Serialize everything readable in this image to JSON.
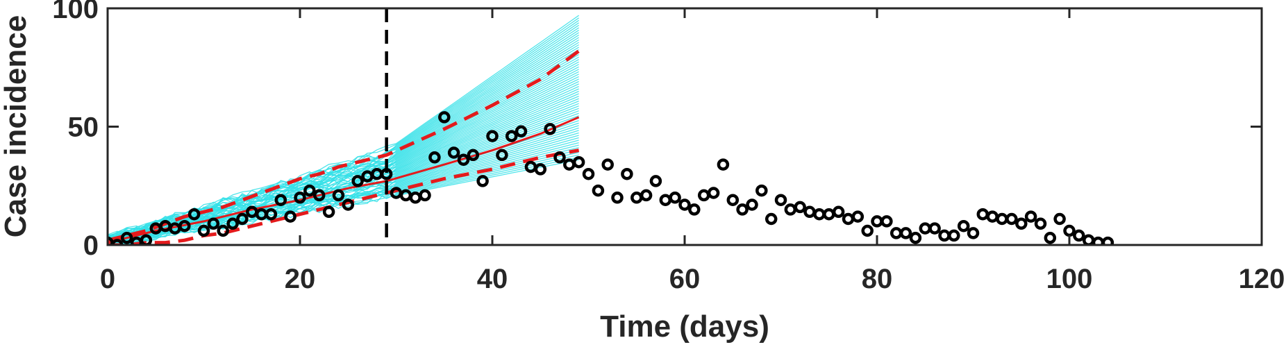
{
  "chart_data": {
    "type": "line",
    "xlabel": "Time (days)",
    "ylabel": "Case incidence",
    "xlim": [
      0,
      120
    ],
    "ylim": [
      0,
      100
    ],
    "xticks": [
      0,
      20,
      40,
      60,
      80,
      100,
      120
    ],
    "yticks": [
      0,
      50,
      100
    ],
    "xtick_labels": [
      "0",
      "20",
      "40",
      "60",
      "80",
      "100",
      "120"
    ],
    "ytick_labels": [
      "0",
      "50",
      "100"
    ],
    "grid": false,
    "fit_cutoff_day": 29,
    "forecast_end_day": 49,
    "colors": {
      "observed": "#000000",
      "ensemble": "#33e0e8",
      "fit": "#e41a1c",
      "cutoff": "#000000",
      "axis": "#262626"
    },
    "series": [
      {
        "kind": "observed",
        "x": [
          0,
          1,
          2,
          3,
          4,
          5,
          6,
          7,
          8,
          9,
          10,
          11,
          12,
          13,
          14,
          15,
          16,
          17,
          18,
          19,
          20,
          21,
          22,
          23,
          24,
          25,
          26,
          27,
          28,
          29,
          30,
          31,
          32,
          33,
          34,
          35,
          36,
          37,
          38,
          39,
          40,
          41,
          42,
          43,
          44,
          45,
          46,
          47,
          48,
          49,
          50,
          51,
          52,
          53,
          54,
          55,
          56,
          57,
          58,
          59,
          60,
          61,
          62,
          63,
          64,
          65,
          66,
          67,
          68,
          69,
          70,
          71,
          72,
          73,
          74,
          75,
          76,
          77,
          78,
          79,
          80,
          81,
          82,
          83,
          84,
          85,
          86,
          87,
          88,
          89,
          90,
          91,
          92,
          93,
          94,
          95,
          96,
          97,
          98,
          99,
          100,
          101,
          102,
          103,
          104
        ],
        "y": [
          1,
          0,
          3,
          1,
          2,
          7,
          8,
          7,
          8,
          13,
          6,
          9,
          6,
          9,
          11,
          14,
          13,
          13,
          19,
          12,
          20,
          23,
          21,
          14,
          21,
          17,
          27,
          29,
          30,
          30,
          22,
          21,
          20,
          21,
          37,
          54,
          39,
          36,
          38,
          27,
          46,
          38,
          46,
          48,
          33,
          32,
          49,
          37,
          34,
          35,
          30,
          23,
          34,
          20,
          30,
          20,
          21,
          27,
          19,
          20,
          17,
          15,
          21,
          22,
          34,
          19,
          15,
          17,
          23,
          11,
          19,
          15,
          16,
          14,
          13,
          13,
          14,
          11,
          12,
          6,
          10,
          10,
          5,
          5,
          3,
          7,
          7,
          4,
          4,
          8,
          5,
          13,
          12,
          11,
          11,
          9,
          12,
          9,
          3,
          11,
          6,
          4,
          2,
          1,
          1
        ]
      },
      {
        "kind": "fit-median",
        "x": [
          0,
          5,
          10,
          15,
          20,
          25,
          29,
          35,
          40,
          45,
          49
        ],
        "y": [
          1,
          6,
          10,
          15,
          19,
          24,
          27,
          34,
          40,
          47,
          54
        ]
      },
      {
        "kind": "fit-upper-95",
        "x": [
          0,
          2,
          4,
          6,
          8,
          10,
          12,
          14,
          16,
          18,
          20,
          22,
          24,
          26,
          28,
          29,
          35,
          40,
          45,
          49
        ],
        "y": [
          2,
          4,
          6,
          9,
          12,
          14,
          16,
          19,
          22,
          25,
          28,
          30,
          33,
          35,
          37,
          38,
          49,
          59,
          70,
          82
        ]
      },
      {
        "kind": "fit-lower-95",
        "x": [
          0,
          2,
          4,
          6,
          8,
          10,
          12,
          14,
          16,
          18,
          20,
          22,
          24,
          26,
          28,
          29,
          35,
          40,
          45,
          49
        ],
        "y": [
          0,
          0,
          1,
          1,
          2,
          4,
          5,
          7,
          9,
          11,
          13,
          15,
          17,
          19,
          21,
          22,
          28,
          32,
          37,
          40
        ]
      },
      {
        "kind": "ensemble-envelope",
        "x": [
          0,
          29,
          49
        ],
        "upper": [
          3,
          40,
          97
        ],
        "lower": [
          0,
          20,
          36
        ]
      }
    ]
  }
}
